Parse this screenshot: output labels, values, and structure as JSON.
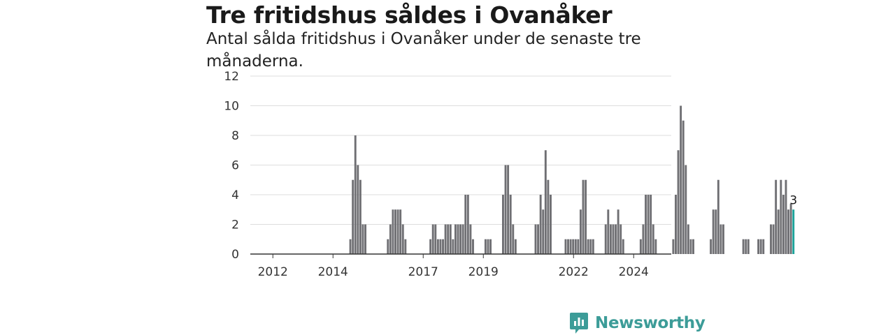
{
  "header": {
    "title": "Tre fritidshus såldes i Ovanåker",
    "subtitle": "Antal sålda fritidshus i Ovanåker under de senaste tre månaderna."
  },
  "brand": {
    "name": "Newsworthy",
    "color": "#3c9c98",
    "icon": "bar-chart-speech-bubble-icon"
  },
  "colors": {
    "bar": "#6f6f73",
    "highlight": "#1aa39a",
    "grid": "#dddddd",
    "axis": "#333333"
  },
  "chart_data": {
    "type": "bar",
    "title": "Tre fritidshus såldes i Ovanåker",
    "subtitle": "Antal sålda fritidshus i Ovanåker under de senaste tre månaderna.",
    "xlabel": "",
    "ylabel": "",
    "ylim": [
      0,
      12
    ],
    "yticks": [
      0,
      2,
      4,
      6,
      8,
      10,
      12
    ],
    "xticks": [
      "2012",
      "2014",
      "2017",
      "2019",
      "2022",
      "2024"
    ],
    "grid": true,
    "legend": "none",
    "frequency": "quarterly, rolling three months",
    "x_start": "2011-04",
    "x_end": "2025-04",
    "values": [
      0,
      0,
      0,
      0,
      0,
      0,
      0,
      0,
      0,
      0,
      0,
      0,
      0,
      0,
      0,
      0,
      0,
      0,
      0,
      0,
      0,
      0,
      0,
      0,
      0,
      0,
      0,
      0,
      0,
      0,
      0,
      0,
      0,
      0,
      0,
      0,
      0,
      0,
      0,
      1,
      5,
      8,
      6,
      5,
      2,
      2,
      0,
      0,
      0,
      0,
      0,
      0,
      0,
      0,
      1,
      2,
      3,
      3,
      3,
      3,
      2,
      1,
      0,
      0,
      0,
      0,
      0,
      0,
      0,
      0,
      0,
      1,
      2,
      2,
      1,
      1,
      1,
      2,
      2,
      2,
      1,
      2,
      2,
      2,
      2,
      4,
      4,
      2,
      1,
      0,
      0,
      0,
      0,
      1,
      1,
      1,
      0,
      0,
      0,
      0,
      4,
      6,
      6,
      4,
      2,
      1,
      0,
      0,
      0,
      0,
      0,
      0,
      0,
      2,
      2,
      4,
      3,
      7,
      5,
      4,
      0,
      0,
      0,
      0,
      0,
      1,
      1,
      1,
      1,
      1,
      1,
      3,
      5,
      5,
      1,
      1,
      1,
      0,
      0,
      0,
      0,
      2,
      3,
      2,
      2,
      2,
      3,
      2,
      1,
      0,
      0,
      0,
      0,
      0,
      0,
      1,
      2,
      4,
      4,
      4,
      2,
      1,
      0,
      0,
      0,
      0,
      0,
      0,
      1,
      4,
      7,
      10,
      9,
      6,
      2,
      1,
      1,
      0,
      0,
      0,
      0,
      0,
      0,
      1,
      3,
      3,
      5,
      2,
      2,
      0,
      0,
      0,
      0,
      0,
      0,
      0,
      1,
      1,
      1,
      0,
      0,
      0,
      1,
      1,
      1,
      0,
      0,
      2,
      2,
      5,
      3,
      5,
      4,
      5,
      3,
      3.4,
      3
    ],
    "highlight_last": true,
    "last_value_label": "3"
  }
}
